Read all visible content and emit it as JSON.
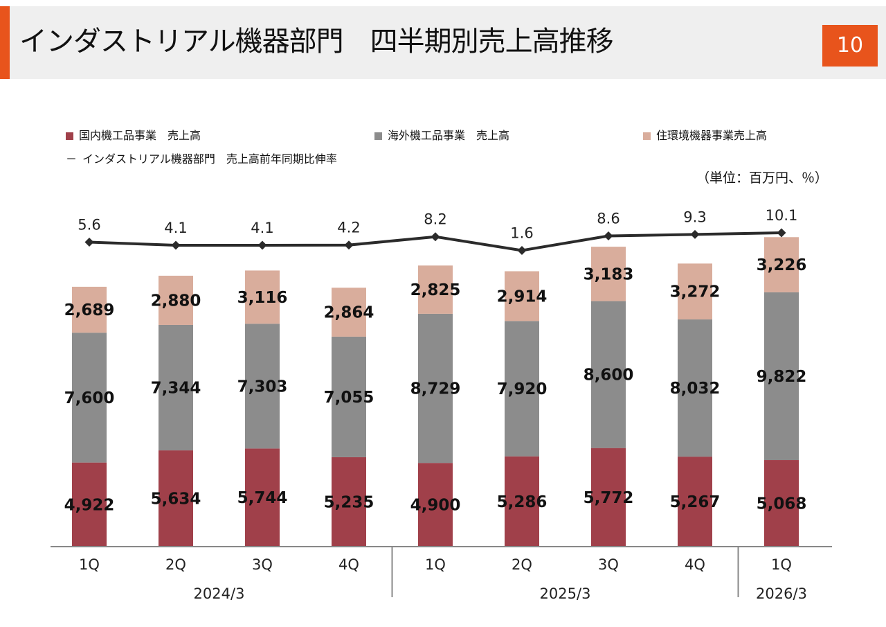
{
  "header": {
    "title": "インダストリアル機器部門　四半期別売上高推移",
    "page_number": "10"
  },
  "legend": {
    "domestic": "国内機工品事業　売上高",
    "overseas": "海外機工品事業　売上高",
    "housing": "住環境機器事業売上高",
    "growth": "インダストリアル機器部門　売上高前年同期比伸率",
    "growth_marker": "－"
  },
  "unit_note": "（単位：百万円、％）",
  "colors": {
    "accent": "#e8541c",
    "domestic": "#a0404a",
    "overseas": "#8c8c8c",
    "housing": "#d9ad9c",
    "line": "#2b2b2b"
  },
  "chart_data": {
    "type": "bar",
    "stacked": true,
    "categories": [
      "1Q",
      "2Q",
      "3Q",
      "4Q",
      "1Q",
      "2Q",
      "3Q",
      "4Q",
      "1Q"
    ],
    "groups": [
      {
        "label": "2024/3",
        "count": 4
      },
      {
        "label": "2025/3",
        "count": 4
      },
      {
        "label": "2026/3",
        "count": 1
      }
    ],
    "series": [
      {
        "name": "国内機工品事業　売上高",
        "values": [
          4922,
          5634,
          5744,
          5235,
          4900,
          5286,
          5772,
          5267,
          5068
        ],
        "labels": [
          "4,922",
          "5,634",
          "5,744",
          "5,235",
          "4,900",
          "5,286",
          "5,772",
          "5,267",
          "5,068"
        ]
      },
      {
        "name": "海外機工品事業　売上高",
        "values": [
          7600,
          7344,
          7303,
          7055,
          8729,
          7920,
          8600,
          8032,
          9822
        ],
        "labels": [
          "7,600",
          "7,344",
          "7,303",
          "7,055",
          "8,729",
          "7,920",
          "8,600",
          "8,032",
          "9,822"
        ]
      },
      {
        "name": "住環境機器事業売上高",
        "values": [
          2689,
          2880,
          3116,
          2864,
          2825,
          2914,
          3183,
          3272,
          3226
        ],
        "labels": [
          "2,689",
          "2,880",
          "3,116",
          "2,864",
          "2,825",
          "2,914",
          "3,183",
          "3,272",
          "3,226"
        ]
      }
    ],
    "line": {
      "name": "インダストリアル機器部門　売上高前年同期比伸率",
      "values": [
        5.6,
        4.1,
        4.1,
        4.2,
        8.2,
        1.6,
        8.6,
        9.3,
        10.1
      ],
      "labels": [
        "5.6",
        "4.1",
        "4.1",
        "4.2",
        "8.2",
        "1.6",
        "8.6",
        "9.3",
        "10.1"
      ]
    },
    "ylim": [
      0,
      17600
    ],
    "grid": false,
    "legend_position": "top"
  }
}
